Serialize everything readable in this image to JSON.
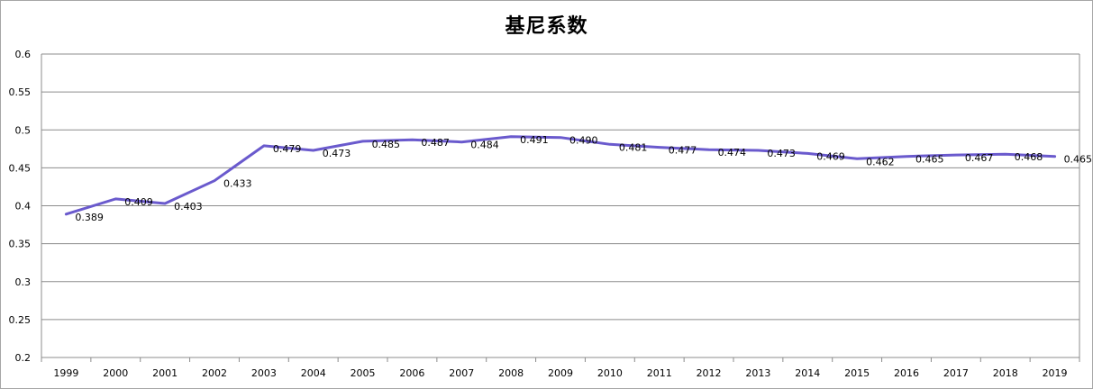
{
  "chart_data": {
    "type": "line",
    "title": "基尼系数",
    "xlabel": "",
    "ylabel": "",
    "categories": [
      "1999",
      "2000",
      "2001",
      "2002",
      "2003",
      "2004",
      "2005",
      "2006",
      "2007",
      "2008",
      "2009",
      "2010",
      "2011",
      "2012",
      "2013",
      "2014",
      "2015",
      "2016",
      "2017",
      "2018",
      "2019"
    ],
    "series": [
      {
        "values": [
          0.389,
          0.409,
          0.403,
          0.433,
          0.479,
          0.473,
          0.485,
          0.487,
          0.484,
          0.491,
          0.49,
          0.481,
          0.477,
          0.474,
          0.473,
          0.469,
          0.462,
          0.465,
          0.467,
          0.468,
          0.465
        ],
        "labels": [
          "0.389",
          "0.409",
          "0.403",
          "0.433",
          "0.479",
          "0.473",
          "0.485",
          "0.487",
          "0.484",
          "0.491",
          "0.490",
          "0.481",
          "0.477",
          "0.474",
          "0.473",
          "0.469",
          "0.462",
          "0.465",
          "0.467",
          "0.468",
          "0.465"
        ]
      }
    ],
    "ylim": [
      0.2,
      0.6
    ],
    "yticks": [
      "0.2",
      "0.25",
      "0.3",
      "0.35",
      "0.4",
      "0.45",
      "0.5",
      "0.55",
      "0.6"
    ],
    "grid": true,
    "line_color": "#6a5acd",
    "grid_color": "#8c8c8c"
  }
}
